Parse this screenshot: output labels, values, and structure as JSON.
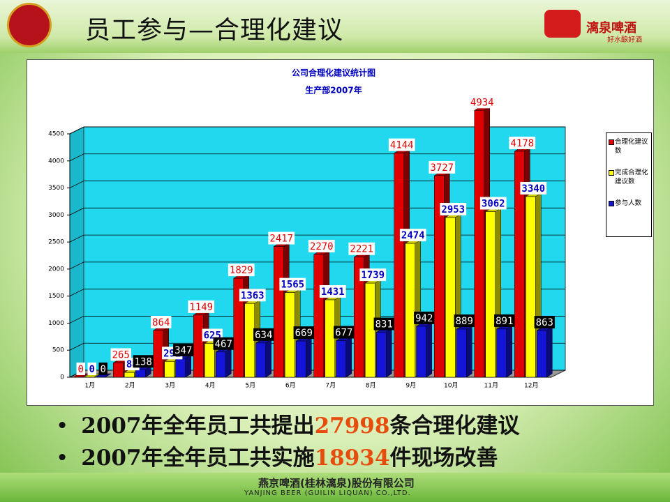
{
  "header": {
    "title": "员工参与—合理化建议",
    "logo_main": "漓泉啤酒",
    "logo_sub": "好水酿好酒"
  },
  "chart_data": {
    "type": "bar3d",
    "title": "公司合理化建议统计图",
    "subtitle": "生产部2007年",
    "categories": [
      "1月",
      "2月",
      "3月",
      "4月",
      "5月",
      "6月",
      "7月",
      "8月",
      "9月",
      "10月",
      "11月",
      "12月"
    ],
    "series": [
      {
        "name": "合理化建议数",
        "color": "#e00000",
        "values": [
          0,
          265,
          864,
          1149,
          1829,
          2417,
          2270,
          2221,
          4144,
          3727,
          4934,
          4178
        ]
      },
      {
        "name": "完成合理化建议数",
        "color": "#ffff00",
        "values": [
          0,
          88,
          292,
          625,
          1363,
          1565,
          1431,
          1739,
          2474,
          2953,
          3062,
          3340
        ]
      },
      {
        "name": "参与人数",
        "color": "#1414d8",
        "values": [
          0,
          138,
          347,
          467,
          634,
          669,
          677,
          831,
          942,
          889,
          891,
          863
        ]
      }
    ],
    "ylim": [
      0,
      4500
    ],
    "yticks": [
      0,
      500,
      1000,
      1500,
      2000,
      2500,
      3000,
      3500,
      4000,
      4500
    ],
    "grid": true,
    "legend": "right"
  },
  "bullets": [
    {
      "prefix": "2007年全年员工共提出",
      "highlight": "27998",
      "suffix": "条合理化建议"
    },
    {
      "prefix": "2007年全年员工共实施",
      "highlight": "18934",
      "suffix": "件现场改善"
    }
  ],
  "footer": {
    "company": "燕京啤酒(桂林漓泉)股份有限公司",
    "company_en": "YANJING BEER (GUILIN LIQUAN) CO.,LTD."
  }
}
